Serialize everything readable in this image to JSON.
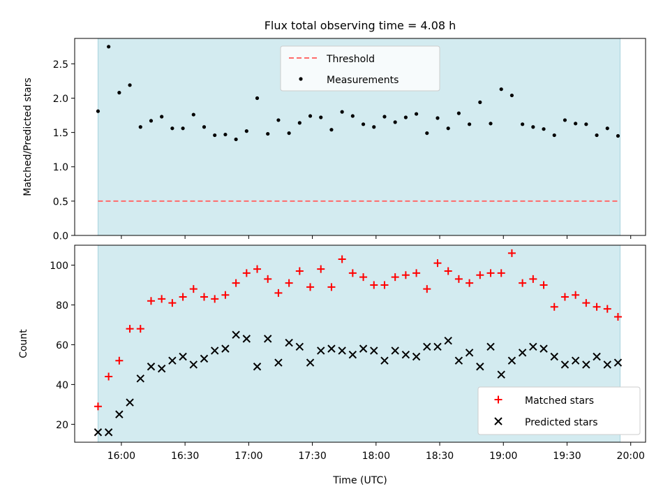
{
  "chart_data": [
    {
      "type": "scatter",
      "title": "Flux total observing time = 4.08 h",
      "ylabel": "Matched/Predicted stars",
      "xlabel": "",
      "x_axis": "time_utc",
      "xlim": [
        "15:38",
        "20:07"
      ],
      "ylim": [
        0,
        2.87
      ],
      "yticks": [
        "0.0",
        "0.5",
        "1.0",
        "1.5",
        "2.0",
        "2.5"
      ],
      "xticks": [
        "16:00",
        "16:30",
        "17:00",
        "17:30",
        "18:00",
        "18:30",
        "19:00",
        "19:30",
        "20:00"
      ],
      "xtick_labels_shown": false,
      "observing_span": [
        "15:49",
        "19:55"
      ],
      "span_color": "#d3ebf0",
      "legend_position": "upper-center",
      "threshold": {
        "name": "Threshold",
        "value": 0.5,
        "color": "#ff6a6a",
        "style": "dashed"
      },
      "series": [
        {
          "name": "Measurements",
          "color": "#000000",
          "marker": "dot",
          "x": [
            "15:49",
            "15:54",
            "15:59",
            "16:04",
            "16:09",
            "16:14",
            "16:19",
            "16:24",
            "16:29",
            "16:34",
            "16:39",
            "16:44",
            "16:49",
            "16:54",
            "16:59",
            "17:04",
            "17:09",
            "17:14",
            "17:19",
            "17:24",
            "17:29",
            "17:34",
            "17:39",
            "17:44",
            "17:49",
            "17:54",
            "17:59",
            "18:04",
            "18:09",
            "18:14",
            "18:19",
            "18:24",
            "18:29",
            "18:34",
            "18:39",
            "18:44",
            "18:49",
            "18:54",
            "18:59",
            "19:04",
            "19:09",
            "19:14",
            "19:19",
            "19:24",
            "19:29",
            "19:34",
            "19:39",
            "19:44",
            "19:49",
            "19:54"
          ],
          "y": [
            1.81,
            2.75,
            2.08,
            2.19,
            1.58,
            1.67,
            1.73,
            1.56,
            1.56,
            1.76,
            1.58,
            1.46,
            1.47,
            1.4,
            1.52,
            2.0,
            1.48,
            1.68,
            1.49,
            1.64,
            1.74,
            1.72,
            1.54,
            1.8,
            1.74,
            1.62,
            1.58,
            1.73,
            1.65,
            1.72,
            1.77,
            1.49,
            1.71,
            1.56,
            1.78,
            1.62,
            1.94,
            1.63,
            2.13,
            2.04,
            1.62,
            1.58,
            1.55,
            1.46,
            1.68,
            1.63,
            1.62,
            1.46,
            1.56,
            1.45
          ]
        }
      ]
    },
    {
      "type": "scatter",
      "title": "",
      "ylabel": "Count",
      "xlabel": "Time (UTC)",
      "x_axis": "time_utc",
      "xlim": [
        "15:38",
        "20:07"
      ],
      "ylim": [
        11,
        110
      ],
      "yticks": [
        "20",
        "40",
        "60",
        "80",
        "100"
      ],
      "xticks": [
        "16:00",
        "16:30",
        "17:00",
        "17:30",
        "18:00",
        "18:30",
        "19:00",
        "19:30",
        "20:00"
      ],
      "xtick_labels_shown": true,
      "observing_span": [
        "15:49",
        "19:55"
      ],
      "span_color": "#d3ebf0",
      "legend_position": "lower-right",
      "series": [
        {
          "name": "Matched stars",
          "color": "#ff0000",
          "marker": "plus",
          "x": [
            "15:49",
            "15:54",
            "15:59",
            "16:04",
            "16:09",
            "16:14",
            "16:19",
            "16:24",
            "16:29",
            "16:34",
            "16:39",
            "16:44",
            "16:49",
            "16:54",
            "16:59",
            "17:04",
            "17:09",
            "17:14",
            "17:19",
            "17:24",
            "17:29",
            "17:34",
            "17:39",
            "17:44",
            "17:49",
            "17:54",
            "17:59",
            "18:04",
            "18:09",
            "18:14",
            "18:19",
            "18:24",
            "18:29",
            "18:34",
            "18:39",
            "18:44",
            "18:49",
            "18:54",
            "18:59",
            "19:04",
            "19:09",
            "19:14",
            "19:19",
            "19:24",
            "19:29",
            "19:34",
            "19:39",
            "19:44",
            "19:49",
            "19:54"
          ],
          "y": [
            29,
            44,
            52,
            68,
            68,
            82,
            83,
            81,
            84,
            88,
            84,
            83,
            85,
            91,
            96,
            98,
            93,
            86,
            91,
            97,
            89,
            98,
            89,
            103,
            96,
            94,
            90,
            90,
            94,
            95,
            96,
            88,
            101,
            97,
            93,
            91,
            95,
            96,
            96,
            106,
            91,
            93,
            90,
            79,
            84,
            85,
            81,
            79,
            78,
            74
          ]
        },
        {
          "name": "Predicted stars",
          "color": "#000000",
          "marker": "x",
          "x": [
            "15:49",
            "15:54",
            "15:59",
            "16:04",
            "16:09",
            "16:14",
            "16:19",
            "16:24",
            "16:29",
            "16:34",
            "16:39",
            "16:44",
            "16:49",
            "16:54",
            "16:59",
            "17:04",
            "17:09",
            "17:14",
            "17:19",
            "17:24",
            "17:29",
            "17:34",
            "17:39",
            "17:44",
            "17:49",
            "17:54",
            "17:59",
            "18:04",
            "18:09",
            "18:14",
            "18:19",
            "18:24",
            "18:29",
            "18:34",
            "18:39",
            "18:44",
            "18:49",
            "18:54",
            "18:59",
            "19:04",
            "19:09",
            "19:14",
            "19:19",
            "19:24",
            "19:29",
            "19:34",
            "19:39",
            "19:44",
            "19:49",
            "19:54"
          ],
          "y": [
            16,
            16,
            25,
            31,
            43,
            49,
            48,
            52,
            54,
            50,
            53,
            57,
            58,
            65,
            63,
            49,
            63,
            51,
            61,
            59,
            51,
            57,
            58,
            57,
            55,
            58,
            57,
            52,
            57,
            55,
            54,
            59,
            59,
            62,
            52,
            56,
            49,
            59,
            45,
            52,
            56,
            59,
            58,
            54,
            50,
            52,
            50,
            54,
            50,
            51
          ]
        }
      ]
    }
  ]
}
